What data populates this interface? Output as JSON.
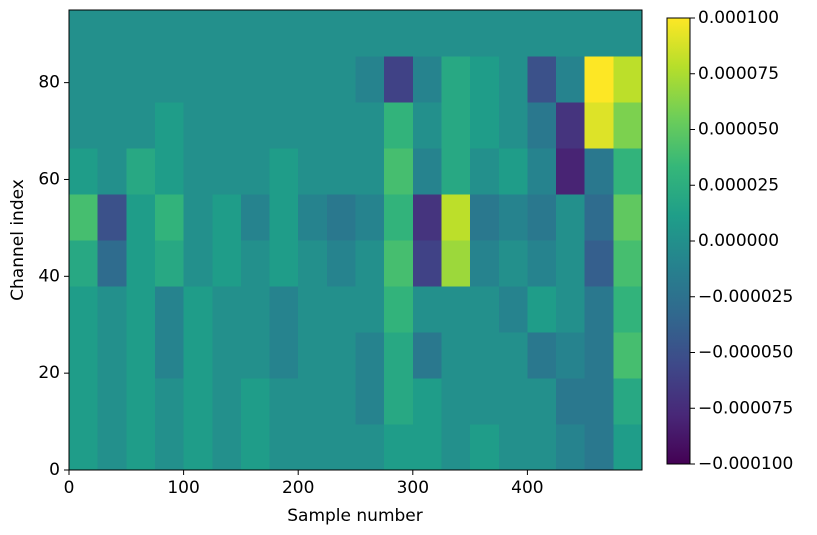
{
  "chart_data": {
    "type": "heatmap",
    "xlabel": "Sample number",
    "ylabel": "Channel index",
    "x": [
      12.5,
      37.5,
      62.5,
      87.5,
      112.5,
      137.5,
      162.5,
      187.5,
      212.5,
      237.5,
      262.5,
      287.5,
      312.5,
      337.5,
      362.5,
      387.5,
      412.5,
      437.5,
      462.5,
      487.5
    ],
    "y": [
      4.75,
      14.25,
      23.75,
      33.25,
      42.75,
      52.25,
      61.75,
      71.25,
      80.75,
      90.25
    ],
    "values": [
      [
        1e-05,
        0,
        1e-05,
        0,
        1e-05,
        0,
        1e-05,
        0,
        0,
        0,
        0,
        1e-05,
        1e-05,
        0,
        1e-05,
        0,
        0,
        -1e-05,
        -2e-05,
        1e-05
      ],
      [
        1e-05,
        0,
        1e-05,
        0,
        1e-05,
        0,
        1e-05,
        0,
        0,
        0,
        -1e-05,
        2e-05,
        1e-05,
        0,
        0,
        0,
        0,
        -2e-05,
        -2e-05,
        2e-05
      ],
      [
        1e-05,
        0,
        1e-05,
        -1e-05,
        1e-05,
        0,
        0,
        -1e-05,
        0,
        0,
        -1e-05,
        2e-05,
        -2e-05,
        0,
        0,
        0,
        -2e-05,
        -1e-05,
        -2e-05,
        4e-05
      ],
      [
        1e-05,
        0,
        1e-05,
        -1e-05,
        1e-05,
        0,
        0,
        -1e-05,
        0,
        0,
        0,
        3e-05,
        0,
        0,
        0,
        -1e-05,
        1e-05,
        0,
        -2e-05,
        3e-05
      ],
      [
        2e-05,
        -3e-05,
        1e-05,
        2e-05,
        0,
        1e-05,
        0,
        1e-05,
        0,
        -1e-05,
        0,
        4e-05,
        -6e-05,
        7e-05,
        -1e-05,
        0,
        -1e-05,
        0,
        -4e-05,
        4e-05
      ],
      [
        4e-05,
        -5e-05,
        1e-05,
        3e-05,
        0,
        1e-05,
        -1e-05,
        1e-05,
        -1e-05,
        -2e-05,
        -1e-05,
        3e-05,
        -7e-05,
        8e-05,
        -2e-05,
        -1e-05,
        -2e-05,
        0,
        -3e-05,
        5e-05
      ],
      [
        1e-05,
        0,
        2e-05,
        1e-05,
        0,
        0,
        0,
        1e-05,
        0,
        0,
        0,
        4e-05,
        -1e-05,
        2e-05,
        0,
        1e-05,
        -1e-05,
        -8e-05,
        -2e-05,
        3e-05
      ],
      [
        0,
        0,
        0,
        1e-05,
        0,
        0,
        0,
        0,
        0,
        0,
        0,
        3e-05,
        0,
        2e-05,
        1e-05,
        0,
        -2e-05,
        -7e-05,
        9e-05,
        6e-05
      ],
      [
        0,
        0,
        0,
        0,
        0,
        0,
        0,
        0,
        0,
        0,
        -1e-05,
        -6e-05,
        -1e-05,
        2e-05,
        1e-05,
        0,
        -5e-05,
        -1e-05,
        0.0001,
        8e-05
      ],
      [
        0,
        0,
        0,
        0,
        0,
        0,
        0,
        0,
        0,
        0,
        0,
        0,
        0,
        0,
        0,
        0,
        0,
        0,
        0,
        0
      ]
    ],
    "xlim": [
      0,
      500
    ],
    "xticks": [
      0,
      100,
      200,
      300,
      400
    ],
    "ylim": [
      0,
      95
    ],
    "yticks": [
      0,
      20,
      40,
      60,
      80
    ],
    "colormap": "viridis",
    "clim": [
      -0.0001,
      0.0001
    ],
    "cticks": [
      {
        "value": 0.0001,
        "label": "0.000100"
      },
      {
        "value": 7.5e-05,
        "label": "0.000075"
      },
      {
        "value": 5e-05,
        "label": "0.000050"
      },
      {
        "value": 2.5e-05,
        "label": "0.000025"
      },
      {
        "value": 0,
        "label": "0.000000"
      },
      {
        "value": -2.5e-05,
        "label": "−0.000025"
      },
      {
        "value": -5e-05,
        "label": "−0.000050"
      },
      {
        "value": -7.5e-05,
        "label": "−0.000075"
      },
      {
        "value": -0.0001,
        "label": "−0.000100"
      }
    ]
  }
}
